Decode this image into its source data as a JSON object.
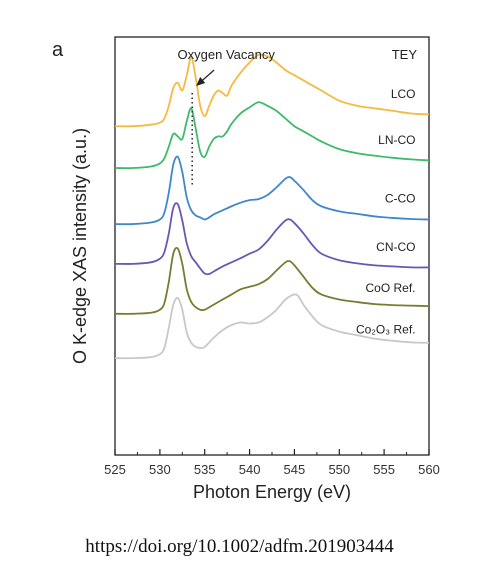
{
  "panel_label": "a",
  "citation": "https://doi.org/10.1002/adfm.201903444",
  "chart_data": {
    "type": "line",
    "title": "",
    "xlabel": "Photon Energy (eV)",
    "ylabel": "O K-edge XAS intensity (a.u.)",
    "xlim": [
      525,
      560
    ],
    "ylim": [
      0,
      8.2
    ],
    "xticks": [
      525,
      530,
      535,
      540,
      545,
      550,
      555,
      560
    ],
    "yticks_shown": false,
    "grid": false,
    "legend": "inline labels at right end of each curve",
    "annotations": [
      {
        "text": "TEY",
        "placement": "top-right"
      },
      {
        "text": "Oxygen Vacancy",
        "target_x": 533.6,
        "style": "arrow with dotted vertical line"
      }
    ],
    "series": [
      {
        "name": "LCO",
        "color": "#F7B93F",
        "x": [
          525,
          527,
          529,
          530,
          530.5,
          531,
          531.5,
          532,
          532.5,
          533,
          533.5,
          534,
          534.5,
          535,
          535.5,
          536,
          536.5,
          537,
          537.5,
          538,
          539,
          540,
          541,
          542,
          543,
          544,
          545,
          546,
          547,
          548,
          550,
          552,
          554,
          556,
          558,
          560
        ],
        "y": [
          6.45,
          6.45,
          6.48,
          6.52,
          6.6,
          6.85,
          7.2,
          7.3,
          7.15,
          7.45,
          7.8,
          7.4,
          6.85,
          6.65,
          6.85,
          7.05,
          7.15,
          7.1,
          7.05,
          7.25,
          7.5,
          7.7,
          7.85,
          7.82,
          7.7,
          7.55,
          7.45,
          7.35,
          7.25,
          7.15,
          6.95,
          6.85,
          6.8,
          6.75,
          6.7,
          6.68
        ]
      },
      {
        "name": "LN-CO",
        "color": "#3DBB6B",
        "x": [
          525,
          527,
          529,
          530,
          530.5,
          531,
          531.5,
          532,
          532.5,
          533,
          533.5,
          534,
          534.5,
          535,
          535.5,
          536,
          536.5,
          537,
          537.5,
          538,
          539,
          540,
          541,
          542,
          543,
          544,
          545,
          546,
          547,
          548,
          550,
          552,
          554,
          556,
          558,
          560
        ],
        "y": [
          5.63,
          5.63,
          5.66,
          5.72,
          5.82,
          6.05,
          6.3,
          6.25,
          6.2,
          6.55,
          6.8,
          6.4,
          5.95,
          5.85,
          6.05,
          6.2,
          6.25,
          6.25,
          6.35,
          6.5,
          6.7,
          6.82,
          6.92,
          6.85,
          6.75,
          6.6,
          6.45,
          6.35,
          6.25,
          6.15,
          6.0,
          5.92,
          5.87,
          5.83,
          5.8,
          5.78
        ]
      },
      {
        "name": "C-CO",
        "color": "#3F87CB",
        "x": [
          525,
          527,
          529,
          530,
          530.5,
          531,
          531.5,
          532,
          532.5,
          533,
          533.5,
          534,
          534.5,
          535,
          535.5,
          536,
          537,
          538,
          539,
          540,
          541,
          542,
          543,
          544,
          544.5,
          545,
          546,
          547,
          548,
          550,
          552,
          554,
          556,
          558,
          560
        ],
        "y": [
          4.53,
          4.53,
          4.56,
          4.62,
          4.75,
          5.15,
          5.7,
          5.85,
          5.55,
          5.05,
          4.8,
          4.7,
          4.66,
          4.62,
          4.66,
          4.72,
          4.8,
          4.88,
          4.95,
          5.0,
          5.02,
          5.1,
          5.25,
          5.42,
          5.45,
          5.38,
          5.2,
          5.0,
          4.88,
          4.78,
          4.73,
          4.68,
          4.65,
          4.63,
          4.62
        ]
      },
      {
        "name": "CN-CO",
        "color": "#6A57B5",
        "x": [
          525,
          527,
          529,
          530,
          530.5,
          531,
          531.5,
          532,
          532.5,
          533,
          533.5,
          534,
          534.5,
          535,
          535.5,
          536,
          537,
          538,
          539,
          540,
          541,
          542,
          543,
          544,
          544.5,
          545,
          546,
          547,
          548,
          550,
          552,
          554,
          556,
          558,
          560
        ],
        "y": [
          3.75,
          3.75,
          3.78,
          3.85,
          3.98,
          4.35,
          4.85,
          4.92,
          4.6,
          4.15,
          3.9,
          3.78,
          3.66,
          3.56,
          3.55,
          3.6,
          3.7,
          3.78,
          3.86,
          3.95,
          4.03,
          4.2,
          4.42,
          4.6,
          4.62,
          4.55,
          4.35,
          4.12,
          3.95,
          3.82,
          3.76,
          3.72,
          3.7,
          3.68,
          3.68
        ]
      },
      {
        "name": "CoO Ref.",
        "color": "#7A7A30",
        "x": [
          525,
          527,
          529,
          530,
          530.5,
          531,
          531.5,
          532,
          532.5,
          533,
          533.5,
          534,
          534.5,
          535,
          536,
          537,
          538,
          539,
          540,
          541,
          542,
          543,
          544,
          544.5,
          545,
          546,
          547,
          548,
          550,
          552,
          554,
          556,
          558,
          560
        ],
        "y": [
          2.77,
          2.77,
          2.79,
          2.85,
          2.98,
          3.4,
          3.95,
          4.05,
          3.75,
          3.25,
          3.0,
          2.9,
          2.85,
          2.85,
          2.95,
          3.05,
          3.15,
          3.25,
          3.3,
          3.35,
          3.45,
          3.62,
          3.78,
          3.8,
          3.72,
          3.5,
          3.28,
          3.15,
          3.05,
          3.0,
          2.96,
          2.94,
          2.93,
          2.92
        ]
      },
      {
        "name": "Co2O3 Ref.",
        "color": "#C8C8C8",
        "x": [
          525,
          527,
          529,
          530,
          530.5,
          531,
          531.5,
          532,
          532.5,
          533,
          533.5,
          534,
          534.5,
          535,
          536,
          537,
          538,
          539,
          540,
          541,
          542,
          543,
          544,
          545,
          545.5,
          546,
          547,
          548,
          550,
          552,
          554,
          556,
          558,
          560
        ],
        "y": [
          1.9,
          1.9,
          1.92,
          1.98,
          2.1,
          2.5,
          2.95,
          3.08,
          2.85,
          2.4,
          2.2,
          2.12,
          2.1,
          2.12,
          2.3,
          2.45,
          2.55,
          2.6,
          2.58,
          2.6,
          2.7,
          2.85,
          3.05,
          3.15,
          3.1,
          2.95,
          2.72,
          2.55,
          2.42,
          2.35,
          2.28,
          2.24,
          2.21,
          2.2
        ]
      }
    ],
    "series_labels": [
      {
        "text": "LCO",
        "near_x": 558.5,
        "near_y": 7.0
      },
      {
        "text": "LN-CO",
        "near_x": 558.5,
        "near_y": 6.1
      },
      {
        "text": "C-CO",
        "near_x": 558.5,
        "near_y": 4.95
      },
      {
        "text": "CN-CO",
        "near_x": 558.5,
        "near_y": 4.0
      },
      {
        "text": "CoO Ref.",
        "near_x": 558.5,
        "near_y": 3.2
      },
      {
        "text": "Co₂O₃ Ref.",
        "near_x": 558.5,
        "near_y": 2.38
      }
    ]
  }
}
